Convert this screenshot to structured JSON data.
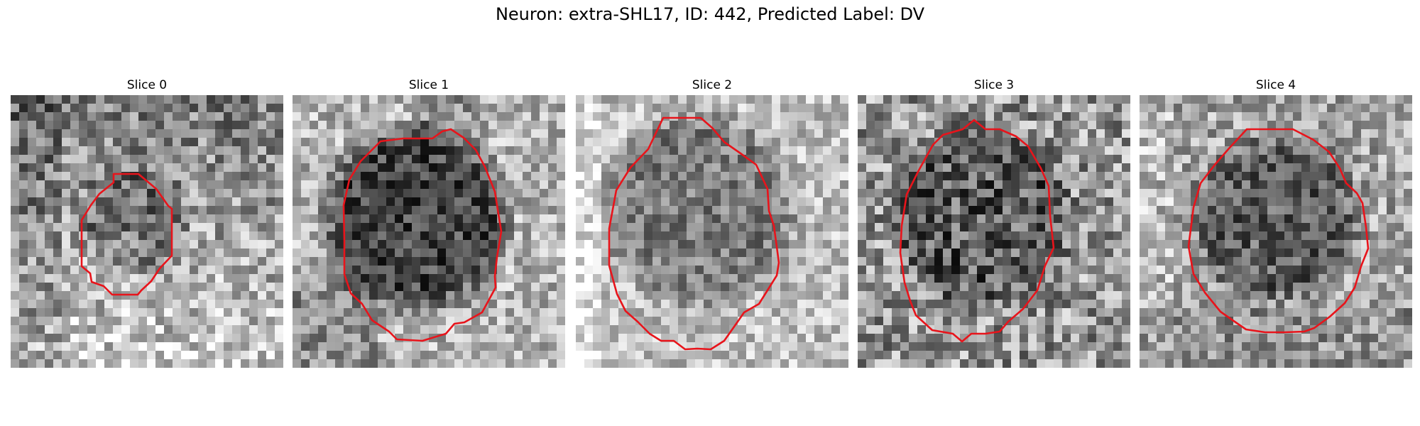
{
  "figure": {
    "title": "Neuron: extra-SHL17, ID: 442, Predicted Label: DV"
  },
  "panels": [
    {
      "title": "Slice 0"
    },
    {
      "title": "Slice 1"
    },
    {
      "title": "Slice 2"
    },
    {
      "title": "Slice 3"
    },
    {
      "title": "Slice 4"
    }
  ],
  "style": {
    "contour_color": "#e8141b",
    "colormap": "grayscale"
  }
}
